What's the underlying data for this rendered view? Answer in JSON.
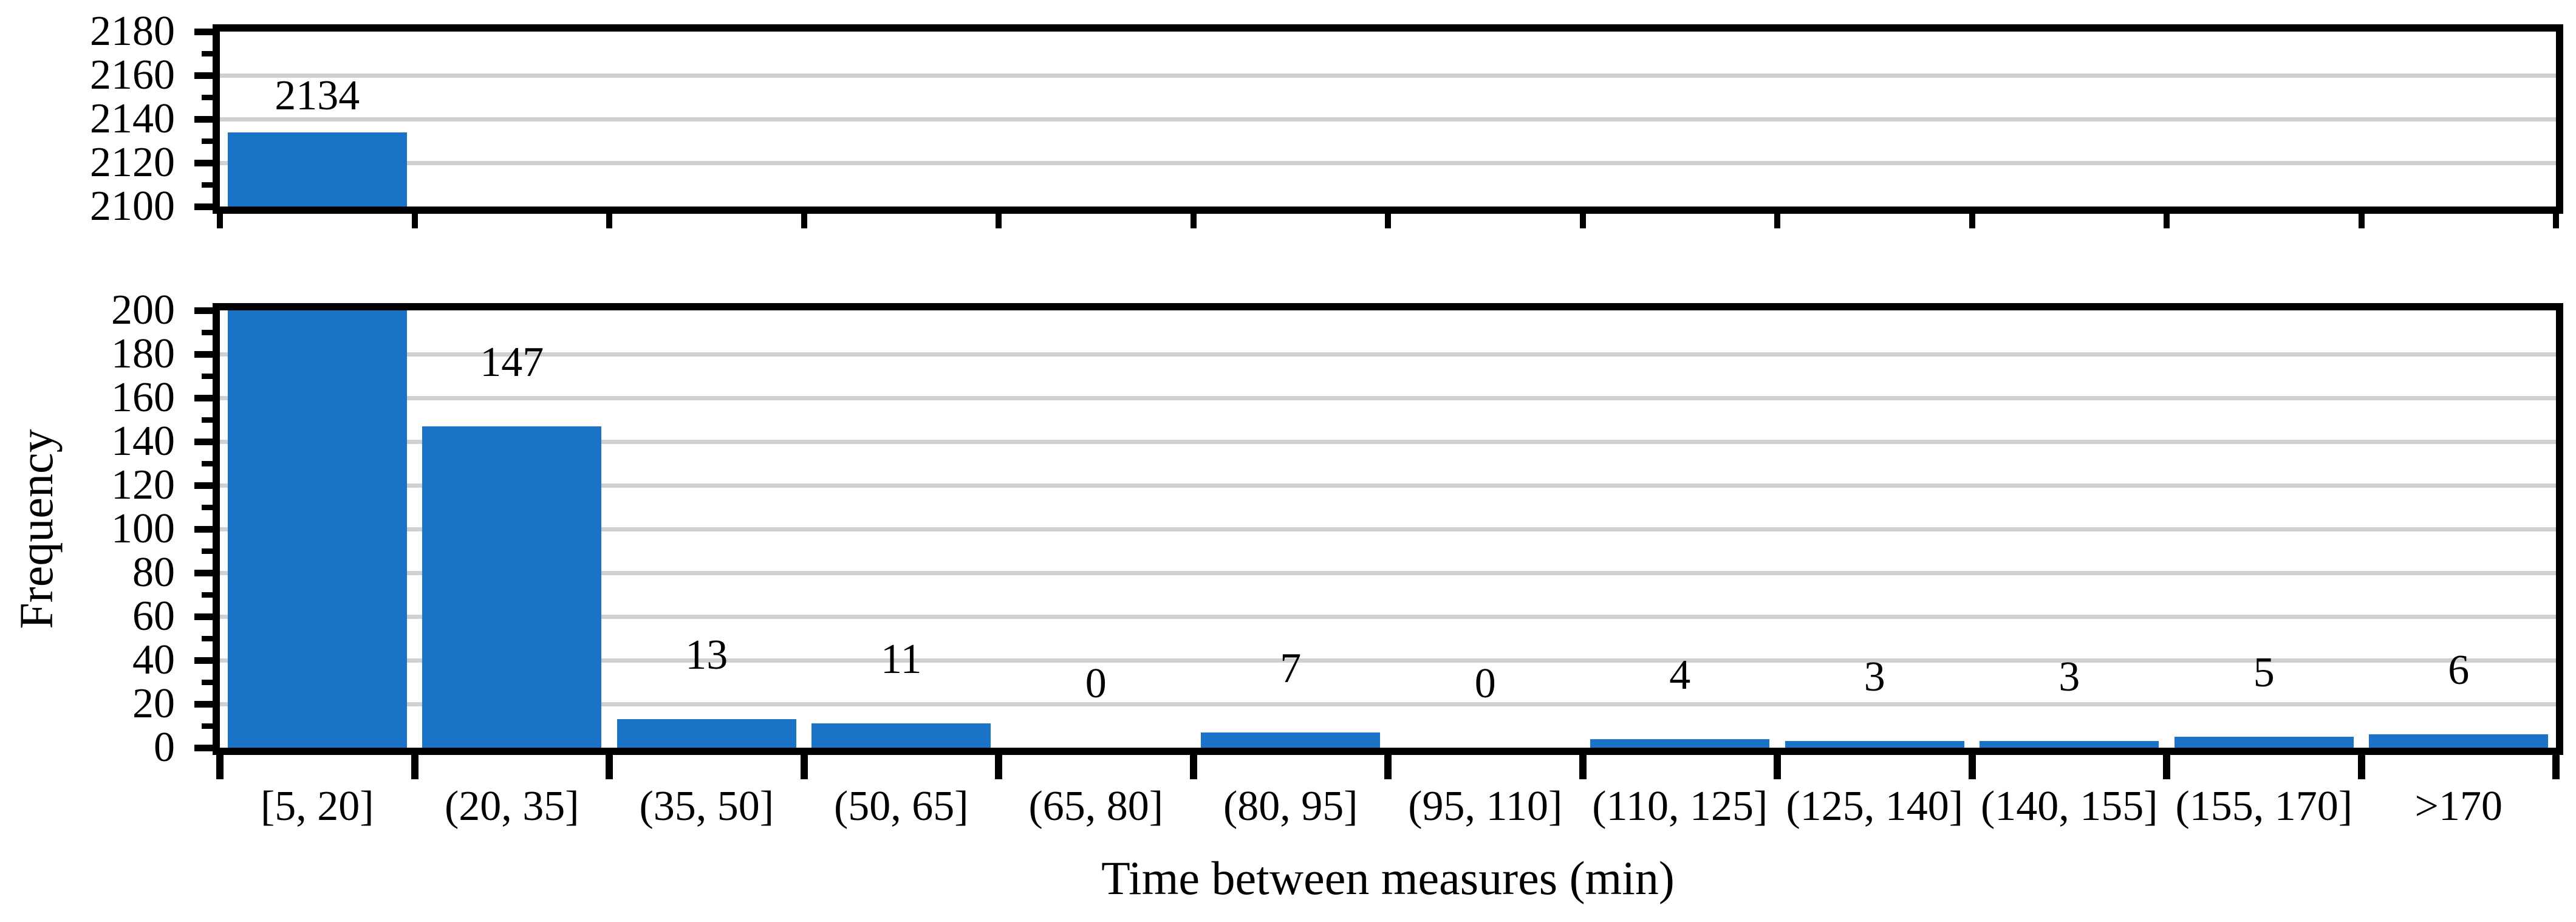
{
  "figure": {
    "background": "#ffffff",
    "kind": "broken-y-axis histogram"
  },
  "chart_data": {
    "type": "bar",
    "title": "",
    "xlabel": "Time between measures (min)",
    "ylabel": "Frequency",
    "categories": [
      "[5, 20]",
      "(20, 35]",
      "(35, 50]",
      "(50, 65]",
      "(65, 80]",
      "(80, 95]",
      "(95, 110]",
      "(110, 125]",
      "(125, 140]",
      "(140, 155]",
      "(155, 170]",
      ">170"
    ],
    "values": [
      2134,
      147,
      13,
      11,
      0,
      7,
      0,
      4,
      3,
      3,
      5,
      6
    ],
    "data_labels": [
      "2134",
      "147",
      "13",
      "11",
      "0",
      "7",
      "0",
      "4",
      "3",
      "3",
      "5",
      "6"
    ],
    "grid": true,
    "legend_position": "none",
    "broken_y_axis": true,
    "panels": [
      {
        "name": "upper",
        "ylim": [
          2100,
          2180
        ],
        "major_ticks": [
          2100,
          2120,
          2140,
          2160,
          2180
        ],
        "minor_tick_step": 10
      },
      {
        "name": "lower",
        "ylim": [
          0,
          200
        ],
        "major_ticks": [
          0,
          20,
          40,
          60,
          80,
          100,
          120,
          140,
          160,
          180,
          200
        ],
        "minor_tick_step": 10
      }
    ],
    "colors": {
      "bar": "#1b73c8",
      "grid": "#d0d0d0",
      "axis": "#000000",
      "text": "#000000",
      "background": "#ffffff"
    }
  }
}
